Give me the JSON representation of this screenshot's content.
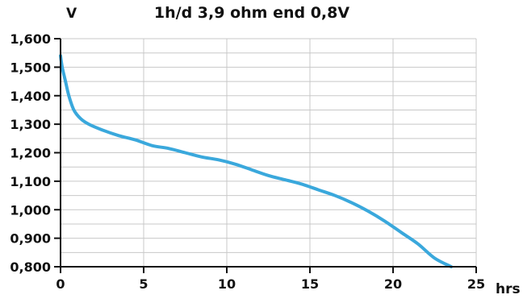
{
  "chart_data": {
    "type": "line",
    "title": "1h/d 3,9 ohm end 0,8V",
    "ylabel": "V",
    "xlabel": "hrs",
    "xlim": [
      0,
      25
    ],
    "ylim": [
      800,
      1600
    ],
    "x_ticks": [
      0,
      5,
      10,
      15,
      20,
      25
    ],
    "x_tick_labels": [
      "0",
      "5",
      "10",
      "15",
      "20",
      "25"
    ],
    "y_ticks": [
      800,
      900,
      1000,
      1100,
      1200,
      1300,
      1400,
      1500,
      1600
    ],
    "y_tick_labels": [
      "0,800",
      "0,900",
      "1,000",
      "1,100",
      "1,200",
      "1,300",
      "1,400",
      "1,500",
      "1,600"
    ],
    "grid": true,
    "series": [
      {
        "color": "#3aa8dc",
        "x": [
          0,
          0.1,
          0.3,
          0.5,
          0.8,
          1.2,
          1.7,
          2.5,
          3.5,
          4.5,
          5.5,
          6.5,
          7.5,
          8.5,
          9.5,
          10.5,
          11.5,
          12.5,
          13.5,
          14.5,
          15.5,
          16.5,
          17.5,
          18.5,
          19.5,
          20.5,
          21.5,
          22.5,
          23.5
        ],
        "y": [
          1540,
          1500,
          1450,
          1400,
          1350,
          1320,
          1300,
          1280,
          1260,
          1245,
          1225,
          1215,
          1200,
          1185,
          1175,
          1160,
          1140,
          1120,
          1105,
          1090,
          1070,
          1050,
          1025,
          995,
          960,
          920,
          880,
          830,
          800
        ]
      }
    ]
  }
}
